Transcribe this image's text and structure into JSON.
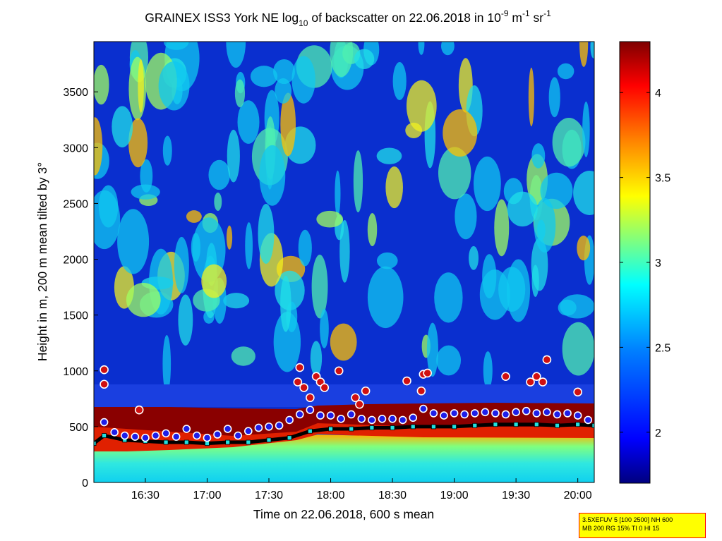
{
  "chart_data": {
    "type": "heatmap",
    "title": {
      "part1": "GRAINEX ISS3 York NE log",
      "sub1": "10",
      "part2": " of backscatter on 22.06.2018 in 10",
      "sup1": "-9",
      "part3": " m",
      "sup2": "-1",
      "part4": " sr",
      "sup3": "-1"
    },
    "xlabel": "Time on 22.06.2018, 600 s mean",
    "ylabel": "Height in m, 200 m mean tilted by 3°",
    "xlim": [
      "16:05",
      "20:08"
    ],
    "ylim": [
      0,
      3950
    ],
    "x_ticks": [
      "16:30",
      "17:00",
      "17:30",
      "18:00",
      "18:30",
      "19:00",
      "19:30",
      "20:00"
    ],
    "y_ticks": [
      "0",
      "500",
      "1000",
      "1500",
      "2000",
      "2500",
      "3000",
      "3500"
    ],
    "colorbar": {
      "range": [
        1.7,
        4.3
      ],
      "ticks": [
        "2",
        "2.5",
        "3",
        "3.5",
        "4"
      ],
      "colors": [
        "#00007f",
        "#0000ff",
        "#007fff",
        "#00ffff",
        "#7fff7f",
        "#ffff00",
        "#ff7f00",
        "#ff0000",
        "#7f0000"
      ]
    },
    "series": [
      {
        "marker": "circle",
        "x": [
          "16:10",
          "16:15",
          "16:20",
          "16:25",
          "16:30",
          "16:35",
          "16:40",
          "16:45",
          "16:50",
          "16:55",
          "17:00",
          "17:05",
          "17:10",
          "17:15",
          "17:20",
          "17:25",
          "17:30",
          "17:35",
          "17:40",
          "17:45",
          "17:50",
          "17:55",
          "18:00",
          "18:05",
          "18:10",
          "18:15",
          "18:20",
          "18:25",
          "18:30",
          "18:35",
          "18:40",
          "18:45",
          "18:50",
          "18:55",
          "19:00",
          "19:05",
          "19:10",
          "19:15",
          "19:20",
          "19:25",
          "19:30",
          "19:35",
          "19:40",
          "19:45",
          "19:50",
          "19:55",
          "20:00",
          "20:05"
        ],
        "y": [
          540,
          450,
          420,
          410,
          400,
          420,
          440,
          410,
          480,
          420,
          400,
          430,
          480,
          420,
          460,
          490,
          500,
          510,
          560,
          610,
          650,
          600,
          600,
          570,
          610,
          570,
          560,
          570,
          570,
          560,
          580,
          660,
          620,
          600,
          620,
          610,
          620,
          630,
          620,
          610,
          630,
          640,
          620,
          630,
          610,
          620,
          600,
          560
        ]
      },
      {
        "marker": "circle",
        "x": [
          "16:10",
          "16:10",
          "16:27",
          "17:44",
          "17:45",
          "17:47",
          "17:50",
          "17:53",
          "17:55",
          "17:57",
          "18:04",
          "18:12",
          "18:14",
          "18:17",
          "18:37",
          "18:44",
          "18:45",
          "18:47",
          "19:25",
          "19:37",
          "19:40",
          "19:43",
          "19:45",
          "20:00"
        ],
        "y": [
          1010,
          880,
          650,
          900,
          1030,
          850,
          760,
          950,
          900,
          850,
          1000,
          760,
          700,
          820,
          910,
          820,
          970,
          980,
          950,
          900,
          950,
          900,
          1100,
          810
        ]
      },
      {
        "marker": "square",
        "x": [
          "16:05",
          "16:10",
          "16:20",
          "16:30",
          "16:40",
          "16:50",
          "17:00",
          "17:10",
          "17:20",
          "17:30",
          "17:40",
          "17:50",
          "18:00",
          "18:10",
          "18:20",
          "18:30",
          "18:40",
          "18:50",
          "19:00",
          "19:10",
          "19:20",
          "19:30",
          "19:40",
          "19:50",
          "20:00",
          "20:08"
        ],
        "y": [
          350,
          420,
          380,
          370,
          360,
          360,
          350,
          360,
          360,
          380,
          400,
          460,
          480,
          480,
          490,
          490,
          500,
          500,
          500,
          510,
          520,
          520,
          520,
          510,
          520,
          510
        ]
      }
    ]
  },
  "infobox": {
    "line1": "3.5XEFUV 5 [100 2500] NH 600",
    "line2": "MB 200 RG 15% TI 0 HI 15"
  }
}
